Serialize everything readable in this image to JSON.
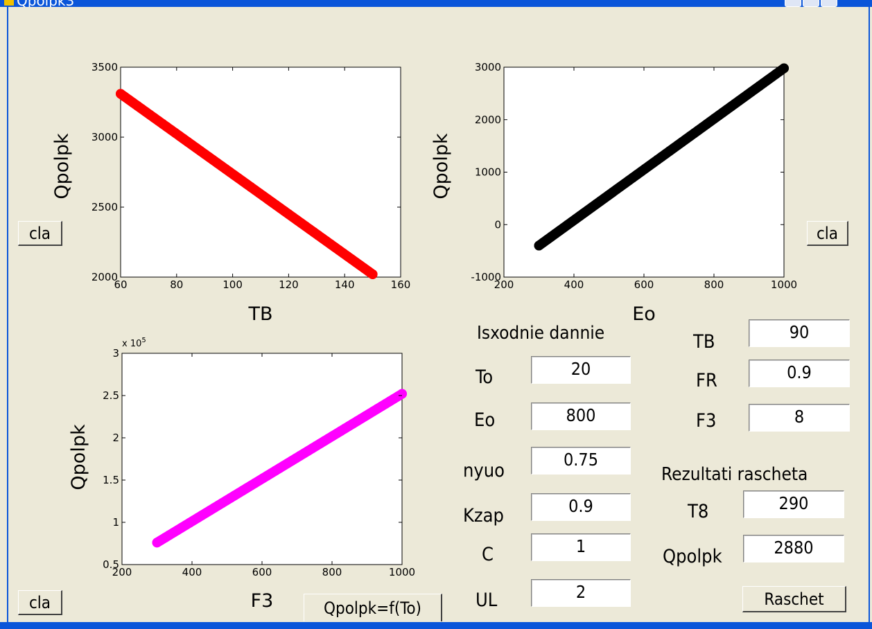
{
  "window": {
    "title": "Qpolpk3"
  },
  "charts": [
    {
      "id": "tb",
      "type": "scatter",
      "xlabel": "TB",
      "ylabel": "Qpolpk",
      "xlim": [
        60,
        160
      ],
      "ylim": [
        2000,
        3500
      ],
      "xticks": [
        60,
        80,
        100,
        120,
        140,
        160
      ],
      "yticks": [
        2000,
        2500,
        3000,
        3500
      ],
      "color": "#ff0000",
      "exponent": "",
      "line": [
        [
          60,
          3310
        ],
        [
          150,
          2020
        ]
      ]
    },
    {
      "id": "eo",
      "type": "scatter",
      "xlabel": "Eo",
      "ylabel": "Qpolpk",
      "xlim": [
        200,
        1000
      ],
      "ylim": [
        -1000,
        3000
      ],
      "xticks": [
        200,
        400,
        600,
        800,
        1000
      ],
      "yticks": [
        -1000,
        0,
        1000,
        2000,
        3000
      ],
      "color": "#000000",
      "exponent": "",
      "line": [
        [
          300,
          -400
        ],
        [
          1000,
          2980
        ]
      ]
    },
    {
      "id": "f3",
      "type": "scatter",
      "xlabel": "F3",
      "ylabel": "Qpolpk",
      "xlim": [
        200,
        1000
      ],
      "ylim": [
        0.5,
        3
      ],
      "xticks": [
        200,
        400,
        600,
        800,
        1000
      ],
      "yticks": [
        0.5,
        1,
        1.5,
        2,
        2.5,
        3
      ],
      "color": "#ff00ff",
      "exponent": "x 10^5",
      "line": [
        [
          300,
          0.76
        ],
        [
          1000,
          2.52
        ]
      ]
    }
  ],
  "chart_data": [
    {
      "type": "scatter",
      "xlabel": "TB",
      "ylabel": "Qpolpk",
      "xlim": [
        60,
        160
      ],
      "ylim": [
        2000,
        3500
      ],
      "series": [
        {
          "x": [
            60,
            150
          ],
          "y": [
            3310,
            2020
          ]
        }
      ]
    },
    {
      "type": "scatter",
      "xlabel": "Eo",
      "ylabel": "Qpolpk",
      "xlim": [
        200,
        1000
      ],
      "ylim": [
        -1000,
        3000
      ],
      "series": [
        {
          "x": [
            300,
            1000
          ],
          "y": [
            -400,
            2980
          ]
        }
      ]
    },
    {
      "type": "scatter",
      "xlabel": "F3",
      "ylabel": "Qpolpk",
      "xlim": [
        200,
        1000
      ],
      "ylim": [
        0.5,
        3
      ],
      "y_multiplier": "x 10^5",
      "series": [
        {
          "x": [
            300,
            1000
          ],
          "y": [
            0.76,
            2.52
          ]
        }
      ]
    }
  ],
  "inputs": {
    "heading": "Isxodnie dannie",
    "to": {
      "label": "To",
      "value": "20"
    },
    "eo": {
      "label": "Eo",
      "value": "800"
    },
    "nyuo": {
      "label": "nyuo",
      "value": "0.75"
    },
    "kzap": {
      "label": "Kzap",
      "value": "0.9"
    },
    "c": {
      "label": "C",
      "value": "1"
    },
    "ul": {
      "label": "UL",
      "value": "2"
    },
    "tb": {
      "label": "TB",
      "value": "90"
    },
    "fr": {
      "label": "FR",
      "value": "0.9"
    },
    "f3": {
      "label": "F3",
      "value": "8"
    }
  },
  "results": {
    "heading": "Rezultati rascheta",
    "t8": {
      "label": "T8",
      "value": "290"
    },
    "qpolpk": {
      "label": "Qpolpk",
      "value": "2880"
    }
  },
  "buttons": {
    "cla": "cla",
    "raschet": "Raschet",
    "qfunc": "Qpolpk=f(To)"
  }
}
